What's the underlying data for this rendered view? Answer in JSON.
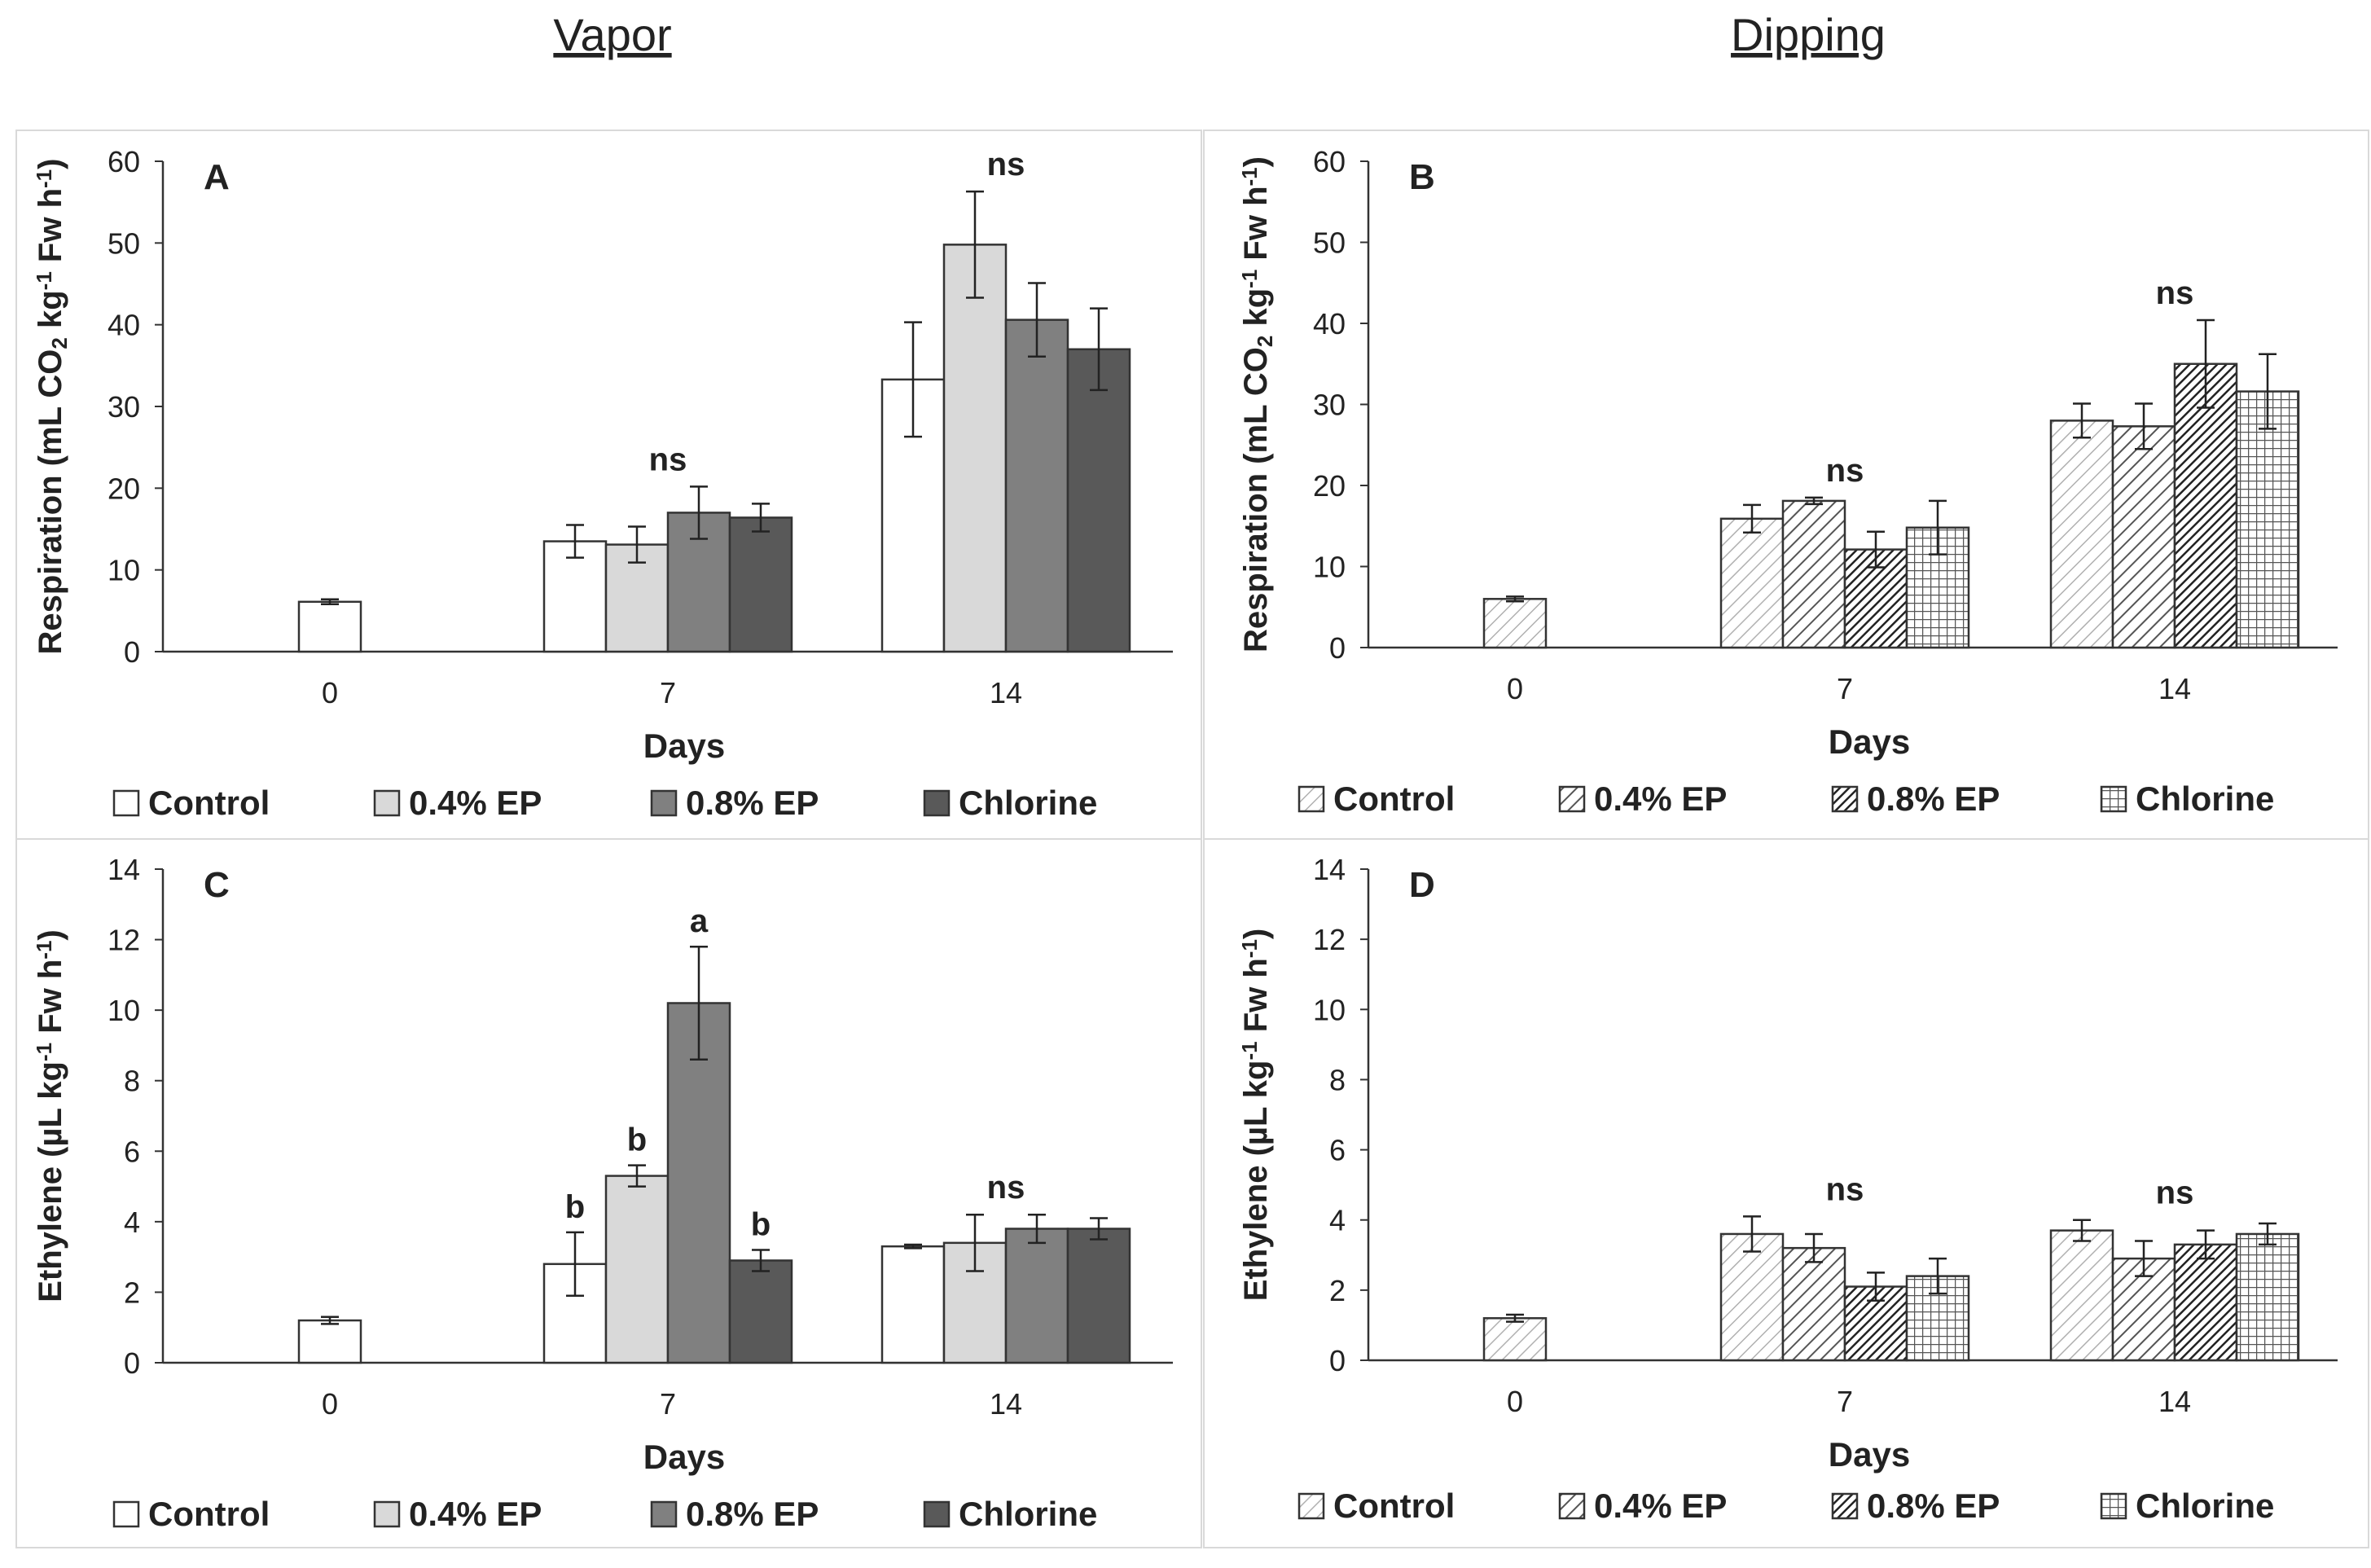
{
  "headers": {
    "left": "Vapor",
    "right": "Dipping"
  },
  "chart_data": [
    {
      "panel": "A",
      "type": "bar",
      "ylabel": "Respiration (mL CO2 kg-1 Fw h-1)",
      "ylabel_parts": [
        "Respiration (mL CO",
        "2",
        " kg",
        "-1",
        " Fw h",
        "-1",
        ")"
      ],
      "xlabel": "Days",
      "ylim": [
        0,
        60
      ],
      "yticks": [
        "0",
        "10",
        "20",
        "30",
        "40",
        "50",
        "60"
      ],
      "categories": [
        "0",
        "7",
        "14"
      ],
      "style": "vapor",
      "series": [
        {
          "name": "Control",
          "values": [
            6.1,
            13.5,
            33.3
          ],
          "errors": [
            0.3,
            2.0,
            7.0
          ]
        },
        {
          "name": "0.4% EP",
          "values": [
            null,
            13.1,
            49.8
          ],
          "errors": [
            null,
            2.2,
            6.5
          ]
        },
        {
          "name": "0.8% EP",
          "values": [
            null,
            17.0,
            40.6
          ],
          "errors": [
            null,
            3.2,
            4.5
          ]
        },
        {
          "name": "Chlorine",
          "values": [
            null,
            16.4,
            37.0
          ],
          "errors": [
            null,
            1.7,
            5.0
          ]
        }
      ],
      "annotations": [
        {
          "category": 1,
          "text": "ns"
        },
        {
          "category": 2,
          "text": "ns"
        }
      ]
    },
    {
      "panel": "B",
      "type": "bar",
      "ylabel": "Respiration (mL CO2 kg-1 Fw h-1)",
      "ylabel_parts": [
        "Respiration (mL CO",
        "2",
        " kg",
        "-1",
        " Fw h",
        "-1",
        ")"
      ],
      "xlabel": "Days",
      "ylim": [
        0,
        60
      ],
      "yticks": [
        "0",
        "10",
        "20",
        "30",
        "40",
        "50",
        "60"
      ],
      "categories": [
        "0",
        "7",
        "14"
      ],
      "style": "dipping",
      "series": [
        {
          "name": "Control",
          "values": [
            6.0,
            15.9,
            28.0
          ],
          "errors": [
            0.3,
            1.7,
            2.1
          ]
        },
        {
          "name": "0.4% EP",
          "values": [
            null,
            18.1,
            27.3
          ],
          "errors": [
            null,
            0.4,
            2.8
          ]
        },
        {
          "name": "0.8% EP",
          "values": [
            null,
            12.1,
            35.0
          ],
          "errors": [
            null,
            2.2,
            5.4
          ]
        },
        {
          "name": "Chlorine",
          "values": [
            null,
            14.8,
            31.6
          ],
          "errors": [
            null,
            3.3,
            4.6
          ]
        }
      ],
      "annotations": [
        {
          "category": 1,
          "text": "ns"
        },
        {
          "category": 2,
          "text": "ns"
        }
      ]
    },
    {
      "panel": "C",
      "type": "bar",
      "ylabel": "Ethylene (µL kg-1 Fw h-1)",
      "ylabel_parts": [
        "Ethylene (µL kg",
        "-1",
        " Fw h",
        "-1",
        ")"
      ],
      "xlabel": "Days",
      "ylim": [
        0,
        14
      ],
      "yticks": [
        "0",
        "2",
        "4",
        "6",
        "8",
        "10",
        "12",
        "14"
      ],
      "categories": [
        "0",
        "7",
        "14"
      ],
      "style": "vapor",
      "series": [
        {
          "name": "Control",
          "values": [
            1.2,
            2.8,
            3.3
          ],
          "errors": [
            0.1,
            0.9,
            0.05
          ]
        },
        {
          "name": "0.4% EP",
          "values": [
            null,
            5.3,
            3.4
          ],
          "errors": [
            null,
            0.3,
            0.8
          ]
        },
        {
          "name": "0.8% EP",
          "values": [
            null,
            10.2,
            3.8
          ],
          "errors": [
            null,
            1.6,
            0.4
          ]
        },
        {
          "name": "Chlorine",
          "values": [
            null,
            2.9,
            3.8
          ],
          "errors": [
            null,
            0.3,
            0.3
          ]
        }
      ],
      "letters": [
        {
          "category": 1,
          "series": 0,
          "text": "b"
        },
        {
          "category": 1,
          "series": 1,
          "text": "b"
        },
        {
          "category": 1,
          "series": 2,
          "text": "a"
        },
        {
          "category": 1,
          "series": 3,
          "text": "b"
        }
      ],
      "annotations": [
        {
          "category": 2,
          "text": "ns"
        }
      ]
    },
    {
      "panel": "D",
      "type": "bar",
      "ylabel": "Ethylene (µL kg-1 Fw h-1)",
      "ylabel_parts": [
        "Ethylene (µL kg",
        "-1",
        " Fw h",
        "-1",
        ")"
      ],
      "xlabel": "Days",
      "ylim": [
        0,
        14
      ],
      "yticks": [
        "0",
        "2",
        "4",
        "6",
        "8",
        "10",
        "12",
        "14"
      ],
      "categories": [
        "0",
        "7",
        "14"
      ],
      "style": "dipping",
      "series": [
        {
          "name": "Control",
          "values": [
            1.2,
            3.6,
            3.7
          ],
          "errors": [
            0.1,
            0.5,
            0.3
          ]
        },
        {
          "name": "0.4% EP",
          "values": [
            null,
            3.2,
            2.9
          ],
          "errors": [
            null,
            0.4,
            0.5
          ]
        },
        {
          "name": "0.8% EP",
          "values": [
            null,
            2.1,
            3.3
          ],
          "errors": [
            null,
            0.4,
            0.4
          ]
        },
        {
          "name": "Chlorine",
          "values": [
            null,
            2.4,
            3.6
          ],
          "errors": [
            null,
            0.5,
            0.3
          ]
        }
      ],
      "annotations": [
        {
          "category": 1,
          "text": "ns"
        },
        {
          "category": 2,
          "text": "ns"
        }
      ]
    }
  ],
  "colors": {
    "vapor": [
      "#ffffff",
      "#d9d9d9",
      "#808080",
      "#595959"
    ],
    "stroke": "#333333",
    "axis": "#333333"
  }
}
